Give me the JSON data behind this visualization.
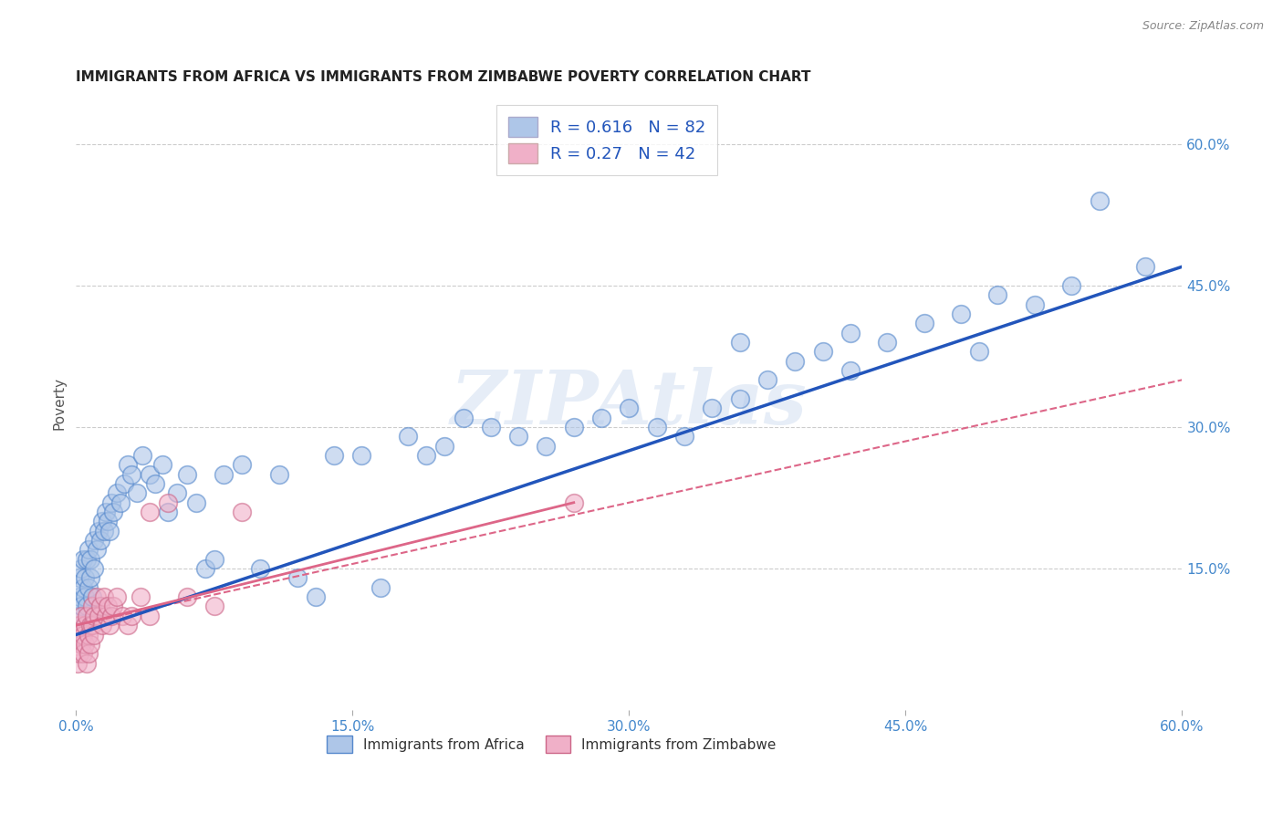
{
  "title": "IMMIGRANTS FROM AFRICA VS IMMIGRANTS FROM ZIMBABWE POVERTY CORRELATION CHART",
  "source": "Source: ZipAtlas.com",
  "ylabel": "Poverty",
  "xlim": [
    0.0,
    0.6
  ],
  "ylim": [
    0.0,
    0.65
  ],
  "xtick_labels": [
    "0.0%",
    "15.0%",
    "30.0%",
    "45.0%",
    "60.0%"
  ],
  "xtick_vals": [
    0.0,
    0.15,
    0.3,
    0.45,
    0.6
  ],
  "ytick_labels_right": [
    "60.0%",
    "45.0%",
    "30.0%",
    "15.0%"
  ],
  "ytick_vals_right": [
    0.6,
    0.45,
    0.3,
    0.15
  ],
  "africa_color": "#aec6e8",
  "africa_edge_color": "#5588cc",
  "zimbabwe_color": "#f0b0c8",
  "zimbabwe_edge_color": "#cc6688",
  "africa_line_color": "#2255bb",
  "zimbabwe_line_color": "#dd6688",
  "R_africa": 0.616,
  "N_africa": 82,
  "R_zimbabwe": 0.27,
  "N_zimbabwe": 42,
  "watermark": "ZIPAtlas",
  "legend_label_africa": "Immigrants from Africa",
  "legend_label_zimbabwe": "Immigrants from Zimbabwe",
  "africa_x": [
    0.001,
    0.002,
    0.002,
    0.003,
    0.003,
    0.004,
    0.004,
    0.005,
    0.005,
    0.006,
    0.006,
    0.007,
    0.007,
    0.008,
    0.008,
    0.009,
    0.01,
    0.01,
    0.011,
    0.012,
    0.013,
    0.014,
    0.015,
    0.016,
    0.017,
    0.018,
    0.019,
    0.02,
    0.022,
    0.024,
    0.026,
    0.028,
    0.03,
    0.033,
    0.036,
    0.04,
    0.043,
    0.047,
    0.05,
    0.055,
    0.06,
    0.065,
    0.07,
    0.075,
    0.08,
    0.09,
    0.1,
    0.11,
    0.12,
    0.13,
    0.14,
    0.155,
    0.165,
    0.18,
    0.19,
    0.2,
    0.21,
    0.225,
    0.24,
    0.255,
    0.27,
    0.285,
    0.3,
    0.315,
    0.33,
    0.345,
    0.36,
    0.375,
    0.39,
    0.405,
    0.42,
    0.44,
    0.46,
    0.48,
    0.5,
    0.52,
    0.54,
    0.36,
    0.42,
    0.49,
    0.555,
    0.58
  ],
  "africa_y": [
    0.1,
    0.12,
    0.14,
    0.11,
    0.15,
    0.13,
    0.16,
    0.12,
    0.14,
    0.11,
    0.16,
    0.13,
    0.17,
    0.14,
    0.16,
    0.12,
    0.15,
    0.18,
    0.17,
    0.19,
    0.18,
    0.2,
    0.19,
    0.21,
    0.2,
    0.19,
    0.22,
    0.21,
    0.23,
    0.22,
    0.24,
    0.26,
    0.25,
    0.23,
    0.27,
    0.25,
    0.24,
    0.26,
    0.21,
    0.23,
    0.25,
    0.22,
    0.15,
    0.16,
    0.25,
    0.26,
    0.15,
    0.25,
    0.14,
    0.12,
    0.27,
    0.27,
    0.13,
    0.29,
    0.27,
    0.28,
    0.31,
    0.3,
    0.29,
    0.28,
    0.3,
    0.31,
    0.32,
    0.3,
    0.29,
    0.32,
    0.33,
    0.35,
    0.37,
    0.38,
    0.4,
    0.39,
    0.41,
    0.42,
    0.44,
    0.43,
    0.45,
    0.39,
    0.36,
    0.38,
    0.54,
    0.47
  ],
  "zimbabwe_x": [
    0.001,
    0.001,
    0.002,
    0.002,
    0.003,
    0.003,
    0.004,
    0.004,
    0.005,
    0.005,
    0.006,
    0.006,
    0.007,
    0.007,
    0.008,
    0.008,
    0.009,
    0.009,
    0.01,
    0.01,
    0.011,
    0.012,
    0.013,
    0.014,
    0.015,
    0.016,
    0.017,
    0.018,
    0.019,
    0.02,
    0.022,
    0.025,
    0.028,
    0.03,
    0.035,
    0.04,
    0.05,
    0.06,
    0.075,
    0.09,
    0.27,
    0.04
  ],
  "zimbabwe_y": [
    0.05,
    0.08,
    0.06,
    0.09,
    0.07,
    0.1,
    0.08,
    0.06,
    0.09,
    0.07,
    0.05,
    0.1,
    0.08,
    0.06,
    0.09,
    0.07,
    0.11,
    0.09,
    0.1,
    0.08,
    0.12,
    0.1,
    0.11,
    0.09,
    0.12,
    0.1,
    0.11,
    0.09,
    0.1,
    0.11,
    0.12,
    0.1,
    0.09,
    0.1,
    0.12,
    0.1,
    0.22,
    0.12,
    0.11,
    0.21,
    0.22,
    0.21
  ],
  "africa_line_x": [
    0.0,
    0.6
  ],
  "africa_line_y": [
    0.08,
    0.47
  ],
  "zimbabwe_solid_line_x": [
    0.0,
    0.27
  ],
  "zimbabwe_solid_line_y": [
    0.09,
    0.22
  ],
  "zimbabwe_dashed_line_x": [
    0.0,
    0.6
  ],
  "zimbabwe_dashed_line_y": [
    0.09,
    0.35
  ]
}
